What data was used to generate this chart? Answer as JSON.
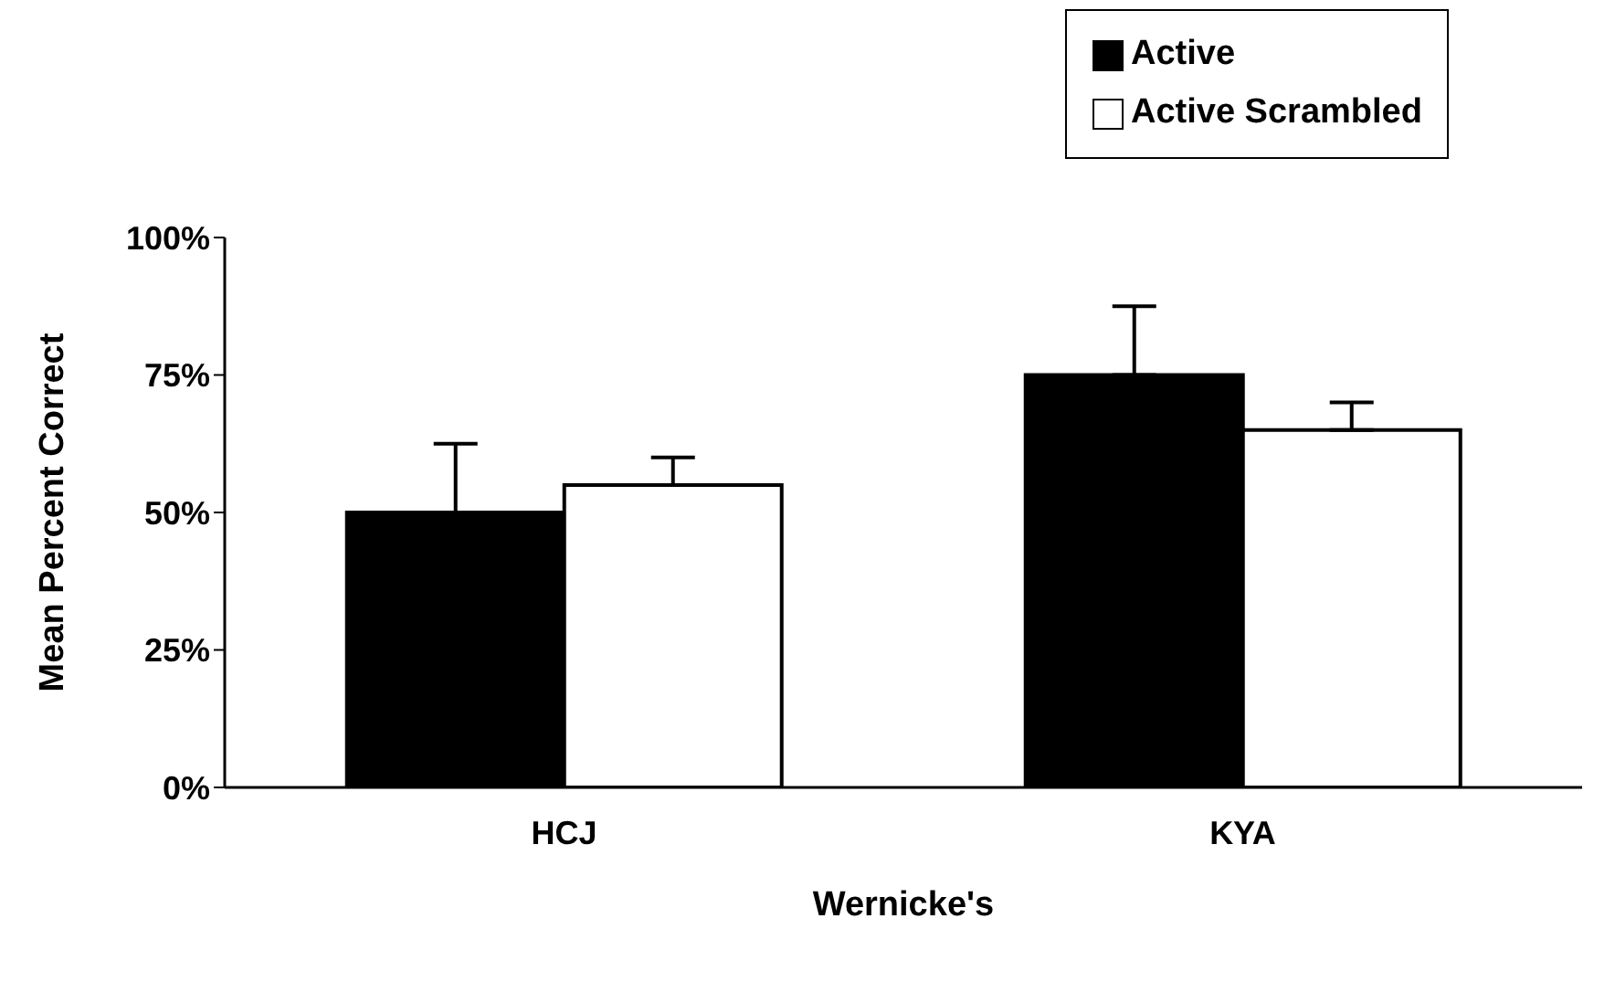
{
  "chart_data": {
    "type": "bar",
    "xlabel": "Wernicke's",
    "ylabel": "Mean Percent Correct",
    "categories": [
      "HCJ",
      "KYA"
    ],
    "series": [
      {
        "name": "Active",
        "color": "#000000",
        "values": [
          50,
          75
        ],
        "errors": [
          [
            50,
            62.5
          ],
          [
            75,
            87.5
          ]
        ]
      },
      {
        "name": "Active Scrambled",
        "color": "#ffffff",
        "values": [
          55,
          65
        ],
        "errors": [
          [
            55,
            60
          ],
          [
            65,
            70
          ]
        ]
      }
    ],
    "ylim": [
      0,
      100
    ],
    "yticks": [
      {
        "value": 0,
        "label": "0%"
      },
      {
        "value": 25,
        "label": "25%"
      },
      {
        "value": 50,
        "label": "50%"
      },
      {
        "value": 75,
        "label": "75%"
      },
      {
        "value": 100,
        "label": "100%"
      }
    ],
    "grid": false,
    "legend": "top right"
  }
}
